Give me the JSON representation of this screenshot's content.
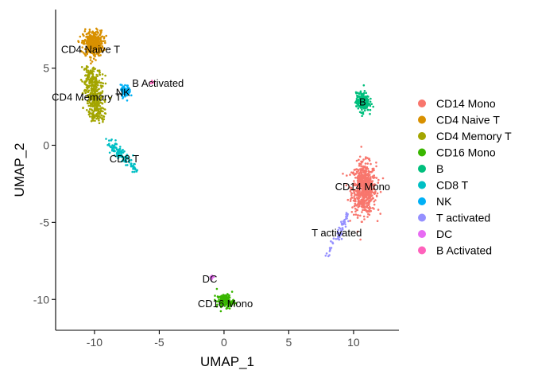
{
  "chart_data": {
    "type": "scatter",
    "title": "",
    "xlabel": "UMAP_1",
    "ylabel": "UMAP_2",
    "xlim": [
      -13,
      13.5
    ],
    "ylim": [
      -12,
      8.8
    ],
    "x_ticks": [
      -10,
      -5,
      0,
      5,
      10
    ],
    "y_ticks": [
      -10,
      -5,
      0,
      5
    ],
    "grid": false,
    "legend_position": "right",
    "series": [
      {
        "name": "CD14 Mono",
        "color": "#F8766D",
        "center": [
          10.8,
          -2.8
        ],
        "spread": [
          0.85,
          1.5
        ],
        "count": 650
      },
      {
        "name": "CD4 Naive T",
        "color": "#D89000",
        "center": [
          -10.1,
          6.6
        ],
        "spread": [
          0.7,
          0.75
        ],
        "count": 380
      },
      {
        "name": "CD4 Memory T",
        "color": "#A3A500",
        "center": [
          -10.0,
          3.3
        ],
        "spread": [
          0.8,
          1.2
        ],
        "count": 420
      },
      {
        "name": "CD16 Mono",
        "color": "#39B600",
        "center": [
          0.1,
          -10.1
        ],
        "spread": [
          0.6,
          0.4
        ],
        "count": 140
      },
      {
        "name": "B",
        "color": "#00BF7D",
        "center": [
          10.7,
          2.8
        ],
        "spread": [
          0.45,
          0.55
        ],
        "count": 260
      },
      {
        "name": "CD8 T",
        "color": "#00BFC4",
        "center": [
          -7.8,
          -0.8
        ],
        "spread": [
          0.5,
          0.5
        ],
        "count": 120
      },
      {
        "name": "NK",
        "color": "#00B0F6",
        "center": [
          -7.6,
          3.5
        ],
        "spread": [
          0.35,
          0.35
        ],
        "count": 90
      },
      {
        "name": "T activated",
        "color": "#9590FF",
        "center": [
          8.7,
          -5.8
        ],
        "spread": [
          0.3,
          0.7
        ],
        "count": 60
      },
      {
        "name": "DC",
        "color": "#E76BF3",
        "center": [
          -0.9,
          -8.6
        ],
        "spread": [
          0.15,
          0.15
        ],
        "count": 8
      },
      {
        "name": "B Activated",
        "color": "#FF62BC",
        "center": [
          -5.6,
          4.1
        ],
        "spread": [
          0.15,
          0.12
        ],
        "count": 4
      }
    ],
    "cluster_labels": [
      {
        "text": "CD4 Naive T",
        "x": -10.3,
        "y": 6.2
      },
      {
        "text": "B Activated",
        "x": -5.1,
        "y": 4.0
      },
      {
        "text": "NK",
        "x": -7.8,
        "y": 3.4
      },
      {
        "text": "CD4 Memory T",
        "x": -10.6,
        "y": 3.1
      },
      {
        "text": "B",
        "x": 10.7,
        "y": 2.8
      },
      {
        "text": "CD8 T",
        "x": -7.7,
        "y": -0.9
      },
      {
        "text": "CD14 Mono",
        "x": 10.7,
        "y": -2.7
      },
      {
        "text": "T activated",
        "x": 8.7,
        "y": -5.7
      },
      {
        "text": "DC",
        "x": -1.1,
        "y": -8.7
      },
      {
        "text": "CD16 Mono",
        "x": 0.1,
        "y": -10.3
      }
    ]
  }
}
